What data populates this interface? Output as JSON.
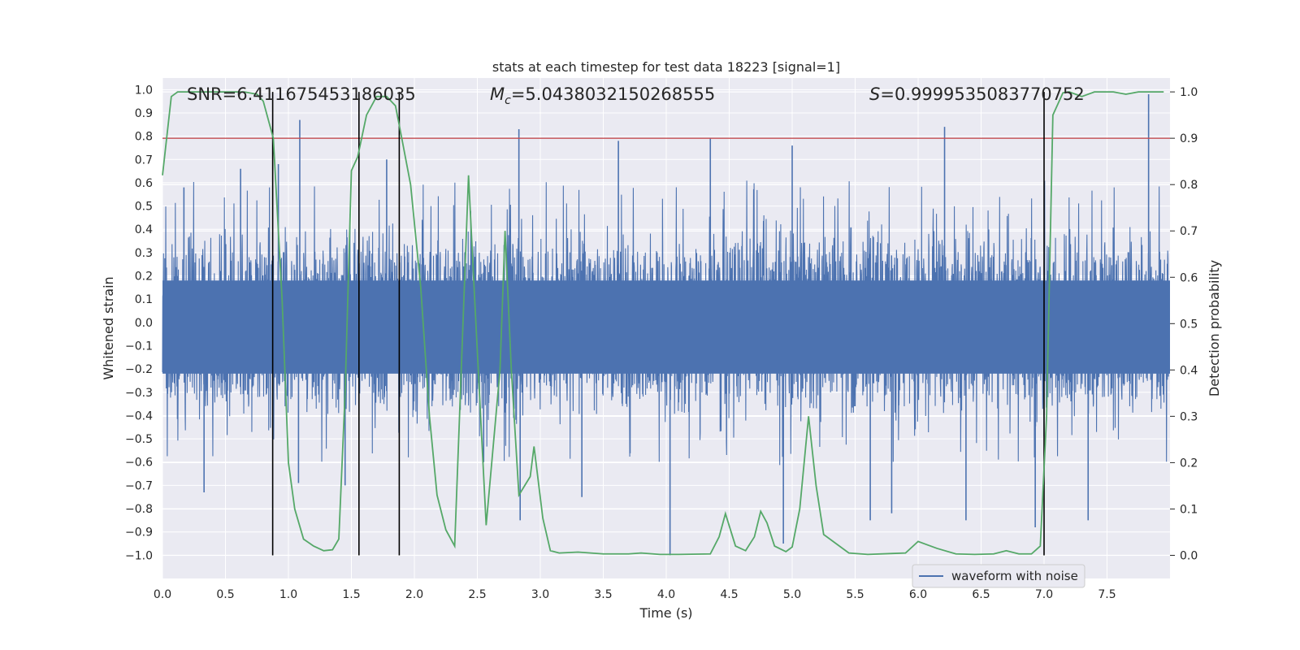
{
  "chart_data": {
    "type": "line",
    "title": "stats at each timestep for test data 18223 [signal=1]",
    "xlabel": "Time (s)",
    "ylabel": "Whitened strain",
    "y2label": "Detection probability",
    "xlim": [
      0.0,
      8.0
    ],
    "ylim": [
      -1.1,
      1.05
    ],
    "y2lim": [
      -0.05,
      1.03
    ],
    "xticks": [
      0.0,
      0.5,
      1.0,
      1.5,
      2.0,
      2.5,
      3.0,
      3.5,
      4.0,
      4.5,
      5.0,
      5.5,
      6.0,
      6.5,
      7.0,
      7.5
    ],
    "xtick_labels": [
      "0.0",
      "0.5",
      "1.0",
      "1.5",
      "2.0",
      "2.5",
      "3.0",
      "3.5",
      "4.0",
      "4.5",
      "5.0",
      "5.5",
      "6.0",
      "6.5",
      "7.0",
      "7.5"
    ],
    "yticks": [
      1.0,
      0.9,
      0.8,
      0.7,
      0.6,
      0.5,
      0.4,
      0.3,
      0.2,
      0.1,
      0.0,
      -0.1,
      -0.2,
      -0.3,
      -0.4,
      -0.5,
      -0.6,
      -0.7,
      -0.8,
      -0.9,
      -1.0
    ],
    "ytick_labels": [
      "1.0",
      "0.9",
      "0.8",
      "0.7",
      "0.6",
      "0.5",
      "0.4",
      "0.3",
      "0.2",
      "0.1",
      "0.0",
      "-0.1",
      "-0.2",
      "-0.3",
      "-0.4",
      "-0.5",
      "-0.6",
      "-0.7",
      "-0.8",
      "-0.9",
      "-1.0"
    ],
    "y2ticks": [
      1.0,
      0.9,
      0.8,
      0.7,
      0.6,
      0.5,
      0.4,
      0.3,
      0.2,
      0.1,
      0.0
    ],
    "y2tick_labels": [
      "1.0",
      "0.9",
      "0.8",
      "0.7",
      "0.6",
      "0.5",
      "0.4",
      "0.3",
      "0.2",
      "0.1",
      "0.0"
    ],
    "grid": true,
    "legend": {
      "placement": "lower-right",
      "entries": [
        "waveform with noise"
      ]
    },
    "annotations": {
      "snr": "SNR=6.411675453186035",
      "mc_symbol": "M",
      "mc_sub": "c",
      "mc_value": "=5.0438032150268555",
      "s_symbol": "S",
      "s_value": "=0.9999535083770752"
    },
    "threshold": {
      "value": 0.9,
      "axis": "y2",
      "color": "#c44e52"
    },
    "vlines": [
      0.875,
      1.56,
      1.88,
      7.0
    ],
    "series": [
      {
        "name": "waveform with noise",
        "axis": "y",
        "color": "#4c72b0",
        "kind": "noise",
        "core_amplitude": 0.42,
        "spike_peaks": [
          {
            "x": 0.17,
            "y": 0.58
          },
          {
            "x": 0.33,
            "y": -0.73
          },
          {
            "x": 0.62,
            "y": 0.66
          },
          {
            "x": 0.92,
            "y": 0.68
          },
          {
            "x": 1.08,
            "y": -0.69
          },
          {
            "x": 1.09,
            "y": 0.87
          },
          {
            "x": 1.45,
            "y": -0.7
          },
          {
            "x": 1.78,
            "y": 0.7
          },
          {
            "x": 2.55,
            "y": -0.6
          },
          {
            "x": 2.83,
            "y": 0.83
          },
          {
            "x": 2.84,
            "y": -0.85
          },
          {
            "x": 3.33,
            "y": -0.75
          },
          {
            "x": 3.62,
            "y": 0.78
          },
          {
            "x": 4.03,
            "y": -1.0
          },
          {
            "x": 4.35,
            "y": 0.79
          },
          {
            "x": 4.93,
            "y": -0.95
          },
          {
            "x": 5.0,
            "y": 0.76
          },
          {
            "x": 5.62,
            "y": -0.85
          },
          {
            "x": 5.79,
            "y": -0.82
          },
          {
            "x": 6.21,
            "y": 0.84
          },
          {
            "x": 6.38,
            "y": -0.85
          },
          {
            "x": 6.93,
            "y": -0.88
          },
          {
            "x": 7.35,
            "y": -0.85
          },
          {
            "x": 7.83,
            "y": 0.98
          }
        ]
      },
      {
        "name": "",
        "axis": "y2",
        "color": "#55a868",
        "kind": "line",
        "points": [
          [
            0.0,
            0.82
          ],
          [
            0.07,
            0.99
          ],
          [
            0.12,
            1.0
          ],
          [
            0.3,
            1.0
          ],
          [
            0.5,
            1.0
          ],
          [
            0.65,
            1.0
          ],
          [
            0.75,
            0.995
          ],
          [
            0.8,
            0.98
          ],
          [
            0.88,
            0.9
          ],
          [
            0.95,
            0.55
          ],
          [
            1.0,
            0.2
          ],
          [
            1.05,
            0.1
          ],
          [
            1.12,
            0.035
          ],
          [
            1.2,
            0.02
          ],
          [
            1.28,
            0.01
          ],
          [
            1.35,
            0.012
          ],
          [
            1.4,
            0.035
          ],
          [
            1.45,
            0.35
          ],
          [
            1.5,
            0.83
          ],
          [
            1.55,
            0.86
          ],
          [
            1.62,
            0.95
          ],
          [
            1.7,
            0.99
          ],
          [
            1.78,
            0.99
          ],
          [
            1.85,
            0.97
          ],
          [
            1.9,
            0.9
          ],
          [
            1.97,
            0.8
          ],
          [
            2.05,
            0.58
          ],
          [
            2.12,
            0.3
          ],
          [
            2.18,
            0.13
          ],
          [
            2.25,
            0.055
          ],
          [
            2.32,
            0.02
          ],
          [
            2.43,
            0.82
          ],
          [
            2.47,
            0.6
          ],
          [
            2.57,
            0.065
          ],
          [
            2.68,
            0.4
          ],
          [
            2.72,
            0.7
          ],
          [
            2.77,
            0.4
          ],
          [
            2.83,
            0.13
          ],
          [
            2.92,
            0.17
          ],
          [
            2.95,
            0.235
          ],
          [
            3.02,
            0.08
          ],
          [
            3.08,
            0.01
          ],
          [
            3.15,
            0.005
          ],
          [
            3.3,
            0.007
          ],
          [
            3.5,
            0.003
          ],
          [
            3.7,
            0.003
          ],
          [
            3.8,
            0.005
          ],
          [
            3.95,
            0.002
          ],
          [
            4.1,
            0.002
          ],
          [
            4.35,
            0.003
          ],
          [
            4.42,
            0.04
          ],
          [
            4.47,
            0.09
          ],
          [
            4.55,
            0.02
          ],
          [
            4.63,
            0.01
          ],
          [
            4.7,
            0.04
          ],
          [
            4.75,
            0.095
          ],
          [
            4.8,
            0.07
          ],
          [
            4.86,
            0.02
          ],
          [
            4.95,
            0.008
          ],
          [
            5.0,
            0.018
          ],
          [
            5.06,
            0.1
          ],
          [
            5.13,
            0.3
          ],
          [
            5.19,
            0.15
          ],
          [
            5.25,
            0.045
          ],
          [
            5.35,
            0.025
          ],
          [
            5.45,
            0.005
          ],
          [
            5.6,
            0.002
          ],
          [
            5.8,
            0.004
          ],
          [
            5.9,
            0.005
          ],
          [
            6.0,
            0.03
          ],
          [
            6.15,
            0.015
          ],
          [
            6.3,
            0.003
          ],
          [
            6.45,
            0.002
          ],
          [
            6.6,
            0.003
          ],
          [
            6.7,
            0.01
          ],
          [
            6.8,
            0.003
          ],
          [
            6.9,
            0.003
          ],
          [
            6.97,
            0.02
          ],
          [
            7.02,
            0.3
          ],
          [
            7.07,
            0.95
          ],
          [
            7.15,
            0.998
          ],
          [
            7.2,
            1.0
          ],
          [
            7.3,
            0.99
          ],
          [
            7.4,
            1.0
          ],
          [
            7.55,
            1.0
          ],
          [
            7.65,
            0.995
          ],
          [
            7.75,
            1.0
          ],
          [
            7.85,
            1.0
          ],
          [
            7.95,
            1.0
          ]
        ]
      }
    ]
  }
}
